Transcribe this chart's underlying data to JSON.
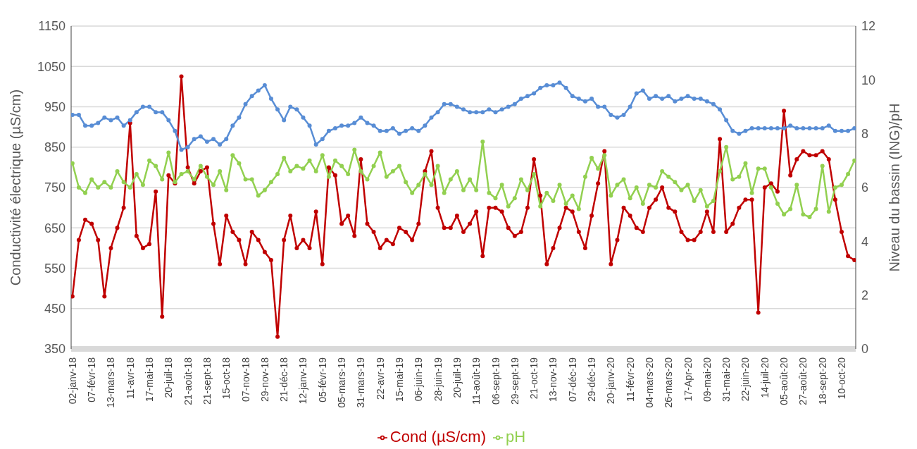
{
  "chart_data": {
    "type": "line",
    "ylabel": "Conductivité électrique (µS/cm)",
    "y2label": "Niveau du bassin (ING)/pH",
    "categories": [
      "02-janv-18",
      null,
      null,
      "07-févr-18",
      null,
      null,
      "13-mars-18",
      null,
      null,
      "11-avr-18",
      null,
      null,
      "17-mai-18",
      null,
      null,
      "20-juil-18",
      null,
      null,
      "21-août-18",
      null,
      null,
      "21-sept-18",
      null,
      null,
      "15-oct-18",
      null,
      null,
      "07-nov-18",
      null,
      null,
      "29-nov-18",
      null,
      null,
      "21-déc-18",
      null,
      null,
      "12-janv-19",
      null,
      null,
      "05-févr-19",
      null,
      null,
      "05-mars-19",
      null,
      null,
      "31-mars-19",
      null,
      null,
      "22-avr-19",
      null,
      null,
      "15-mai-19",
      null,
      null,
      "06-juin-19",
      null,
      null,
      "28-juin-19",
      null,
      null,
      "20-juil-19",
      null,
      null,
      "11-août-19",
      null,
      null,
      "06-sept-19",
      null,
      null,
      "29-sept-19",
      null,
      null,
      "21-oct-19",
      null,
      null,
      "13-nov-19",
      null,
      null,
      "07-déc-19",
      null,
      null,
      "29-déc-19",
      null,
      null,
      "20-janv-20",
      null,
      null,
      "11-févr-20",
      null,
      null,
      "04-mars-20",
      null,
      null,
      "26-mars-20",
      null,
      null,
      "17-Apr-20",
      null,
      null,
      "09-mai-20",
      null,
      null,
      "31-mai-20",
      null,
      null,
      "22-juin-20",
      null,
      null,
      "14-juil-20",
      null,
      null,
      "05-août-20",
      null,
      null,
      "27-août-20",
      null,
      null,
      "18-sept-20",
      null,
      null,
      "10-oct-20",
      null,
      null
    ],
    "series": [
      {
        "name": "Cond (µS/cm)",
        "color": "#c00000",
        "values": [
          480,
          620,
          670,
          660,
          620,
          480,
          600,
          650,
          700,
          910,
          630,
          600,
          610,
          740,
          430,
          780,
          760,
          1025,
          800,
          760,
          790,
          800,
          660,
          560,
          680,
          640,
          620,
          560,
          640,
          620,
          590,
          570,
          380,
          620,
          680,
          600,
          620,
          600,
          690,
          560,
          800,
          780,
          660,
          680,
          630,
          820,
          660,
          640,
          600,
          620,
          610,
          650,
          640,
          620,
          660,
          790,
          840,
          700,
          650,
          650,
          680,
          640,
          660,
          690,
          580,
          700,
          700,
          690,
          650,
          630,
          640,
          700,
          820,
          730,
          560,
          600,
          650,
          700,
          690,
          640,
          600,
          680,
          760,
          840,
          560,
          620,
          700,
          680,
          650,
          640,
          700,
          720,
          750,
          700,
          690,
          640,
          620,
          620,
          640,
          690,
          640,
          870,
          640,
          660,
          700,
          720,
          720,
          440,
          750,
          760,
          740,
          940,
          780,
          820,
          840,
          830,
          830,
          840,
          820,
          720,
          640,
          580,
          570
        ]
      },
      {
        "name": "pH",
        "color": "#92d050",
        "axis": "y2",
        "values": [
          6.9,
          6.0,
          5.8,
          6.3,
          6.0,
          6.2,
          6.0,
          6.6,
          6.2,
          6.0,
          6.5,
          6.1,
          7.0,
          6.8,
          6.3,
          7.3,
          6.2,
          6.5,
          6.6,
          6.3,
          6.8,
          6.4,
          6.1,
          6.6,
          5.9,
          7.2,
          6.9,
          6.3,
          6.3,
          5.7,
          5.9,
          6.2,
          6.5,
          7.1,
          6.6,
          6.8,
          6.7,
          7.0,
          6.6,
          7.2,
          6.4,
          7.0,
          6.8,
          6.5,
          7.4,
          6.6,
          6.3,
          6.8,
          7.3,
          6.4,
          6.6,
          6.8,
          6.2,
          5.8,
          6.1,
          6.5,
          6.1,
          6.8,
          5.8,
          6.3,
          6.6,
          5.9,
          6.3,
          5.9,
          7.7,
          5.8,
          5.6,
          6.1,
          5.3,
          5.6,
          6.3,
          5.9,
          6.5,
          5.3,
          5.8,
          5.5,
          6.1,
          5.4,
          5.7,
          5.2,
          6.4,
          7.1,
          6.7,
          7.2,
          5.7,
          6.1,
          6.3,
          5.6,
          6.0,
          5.4,
          6.1,
          6.0,
          6.6,
          6.4,
          6.2,
          5.9,
          6.1,
          5.5,
          5.9,
          5.3,
          5.5,
          6.6,
          7.5,
          6.3,
          6.4,
          6.9,
          5.8,
          6.7,
          6.7,
          6.0,
          5.4,
          5.0,
          5.2,
          6.1,
          5.0,
          4.9,
          5.2,
          6.8,
          5.1,
          6.0,
          6.1,
          6.5,
          7.0
        ]
      },
      {
        "color": "#588dd5",
        "axis": "y2",
        "values": [
          8.7,
          8.7,
          8.3,
          8.3,
          8.4,
          8.6,
          8.5,
          8.6,
          8.3,
          8.5,
          8.8,
          9.0,
          9.0,
          8.8,
          8.8,
          8.5,
          8.1,
          7.4,
          7.5,
          7.8,
          7.9,
          7.7,
          7.8,
          7.6,
          7.8,
          8.3,
          8.6,
          9.1,
          9.4,
          9.6,
          9.8,
          9.3,
          8.9,
          8.5,
          9.0,
          8.9,
          8.6,
          8.3,
          7.6,
          7.8,
          8.1,
          8.2,
          8.3,
          8.3,
          8.4,
          8.6,
          8.4,
          8.3,
          8.1,
          8.1,
          8.2,
          8.0,
          8.1,
          8.2,
          8.1,
          8.3,
          8.6,
          8.8,
          9.1,
          9.1,
          9.0,
          8.9,
          8.8,
          8.8,
          8.8,
          8.9,
          8.8,
          8.9,
          9.0,
          9.1,
          9.3,
          9.4,
          9.5,
          9.7,
          9.8,
          9.8,
          9.9,
          9.7,
          9.4,
          9.3,
          9.2,
          9.3,
          9.0,
          9.0,
          8.7,
          8.6,
          8.7,
          9.0,
          9.5,
          9.6,
          9.3,
          9.4,
          9.3,
          9.4,
          9.2,
          9.3,
          9.4,
          9.3,
          9.3,
          9.2,
          9.1,
          8.9,
          8.5,
          8.1,
          8.0,
          8.1,
          8.2,
          8.2,
          8.2,
          8.2,
          8.2,
          8.2,
          8.3,
          8.2,
          8.2,
          8.2,
          8.2,
          8.2,
          8.3,
          8.1,
          8.1,
          8.1,
          8.2
        ]
      }
    ],
    "ylim": [
      350,
      1150
    ],
    "yticks": [
      350,
      450,
      550,
      650,
      750,
      850,
      950,
      1050,
      1150
    ],
    "y2lim": [
      0,
      12
    ],
    "y2ticks": [
      0,
      2,
      4,
      6,
      8,
      10,
      12
    ],
    "grid": "y",
    "legend": "bottom",
    "marker": "circle"
  }
}
